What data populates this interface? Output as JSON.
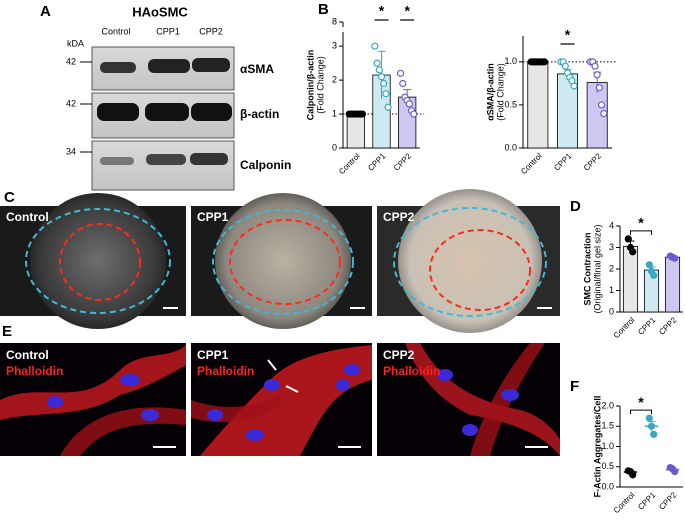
{
  "panels": {
    "A": {
      "label": "A",
      "title": "HAoSMC",
      "lanes": [
        "Control",
        "CPP1",
        "CPP2"
      ],
      "kda": "kDA",
      "markers": [
        "42",
        "42",
        "34"
      ],
      "proteins": [
        "αSMA",
        "β-actin",
        "Calponin"
      ]
    },
    "B": {
      "label": "B"
    },
    "C": {
      "label": "C",
      "images": [
        "Control",
        "CPP1",
        "CPP2"
      ]
    },
    "D": {
      "label": "D"
    },
    "E": {
      "label": "E",
      "images": [
        {
          "condition": "Control",
          "stain": "Phalloidin"
        },
        {
          "condition": "CPP1",
          "stain": "Phalloidin"
        },
        {
          "condition": "CPP2",
          "stain": "Phalloidin"
        }
      ]
    },
    "F": {
      "label": "F"
    }
  },
  "chart_data": [
    {
      "type": "bar",
      "ylabel": [
        "Calponin/β-actin",
        "(Fold Change)"
      ],
      "categories": [
        "Control",
        "CPP1",
        "CPP2"
      ],
      "values": [
        1.0,
        2.15,
        1.5
      ],
      "errors": [
        0.0,
        0.7,
        0.22
      ],
      "points": [
        [
          1,
          1,
          1,
          1,
          1,
          1,
          1
        ],
        [
          3.0,
          2.5,
          2.3,
          2.1,
          1.9,
          1.6,
          1.2
        ],
        [
          2.2,
          1.9,
          1.5,
          1.4,
          1.3,
          1.1,
          1.0
        ]
      ],
      "colors": [
        "#e6e6e6",
        "#cfe9f2",
        "#cdc7f2"
      ],
      "point_colors": [
        "#000000",
        "#3aa8bd",
        "#6b5bd2"
      ],
      "ylim": [
        0,
        8
      ],
      "yticks": [
        0,
        1,
        2,
        3,
        8
      ],
      "axis_break": true,
      "reference_line": 1,
      "annotations": [
        {
          "text": "*",
          "categories": [
            "CPP1"
          ]
        },
        {
          "text": "*",
          "categories": [
            "CPP2"
          ]
        }
      ]
    },
    {
      "type": "bar",
      "ylabel": [
        "αSMA/β-actin",
        "(Fold Change)"
      ],
      "categories": [
        "Control",
        "CPP1",
        "CPP2"
      ],
      "values": [
        1.0,
        0.86,
        0.76
      ],
      "errors": [
        0.0,
        0.05,
        0.12
      ],
      "points": [
        [
          1,
          1,
          1,
          1,
          1,
          1,
          1
        ],
        [
          1.0,
          1.0,
          0.95,
          0.87,
          0.82,
          0.78,
          0.72
        ],
        [
          1.0,
          1.0,
          0.95,
          0.85,
          0.7,
          0.5,
          0.4
        ]
      ],
      "colors": [
        "#e6e6e6",
        "#cfe9f2",
        "#cdc7f2"
      ],
      "point_colors": [
        "#000000",
        "#3aa8bd",
        "#6b5bd2"
      ],
      "ylim": [
        0,
        1.3
      ],
      "yticks": [
        {
          "value": 0,
          "label": "0.0"
        },
        {
          "value": 0.5,
          "label": "0.5"
        },
        {
          "value": 1,
          "label": "1.0"
        }
      ],
      "reference_line": 1,
      "annotations": [
        {
          "text": "*",
          "categories": [
            "CPP1"
          ]
        }
      ]
    },
    {
      "type": "bar",
      "ylabel": [
        "SMC Contraction",
        "(Original/final gel size)"
      ],
      "categories": [
        "Control",
        "CPP1",
        "CPP2"
      ],
      "values": [
        3.05,
        1.95,
        2.55
      ],
      "errors": [
        0.25,
        0.15,
        0.05
      ],
      "points": [
        [
          3.4,
          3.0,
          2.8
        ],
        [
          2.2,
          1.9,
          1.7
        ],
        [
          2.6,
          2.55,
          2.5
        ]
      ],
      "colors": [
        "#e6e6e6",
        "#cfe9f2",
        "#cdc7f2"
      ],
      "point_colors": [
        "#000000",
        "#3aa8bd",
        "#6b5bd2"
      ],
      "ylim": [
        0,
        4
      ],
      "yticks": [
        0,
        1,
        2,
        3,
        4
      ],
      "annotations": [
        {
          "text": "*",
          "between": [
            "Control",
            "CPP1"
          ]
        }
      ]
    },
    {
      "type": "dot",
      "ylabel": [
        "F-Actin Aggregates/Cell"
      ],
      "categories": [
        "Control",
        "CPP1",
        "CPP2"
      ],
      "values": [
        0.37,
        1.5,
        0.43
      ],
      "errors": [
        0.03,
        0.12,
        0.03
      ],
      "points": [
        [
          0.4,
          0.38,
          0.3
        ],
        [
          1.7,
          1.5,
          1.3
        ],
        [
          0.48,
          0.45,
          0.38
        ]
      ],
      "point_colors": [
        "#000000",
        "#3aa8bd",
        "#6b5bd2"
      ],
      "ylim": [
        0,
        2
      ],
      "yticks": [
        {
          "value": 0,
          "label": "0.0"
        },
        {
          "value": 0.5,
          "label": "0.5"
        },
        {
          "value": 1,
          "label": "1.0"
        },
        {
          "value": 1.5,
          "label": "1.5"
        },
        {
          "value": 2,
          "label": "2.0"
        }
      ],
      "annotations": [
        {
          "text": "*",
          "between": [
            "Control",
            "CPP1"
          ]
        }
      ]
    }
  ]
}
